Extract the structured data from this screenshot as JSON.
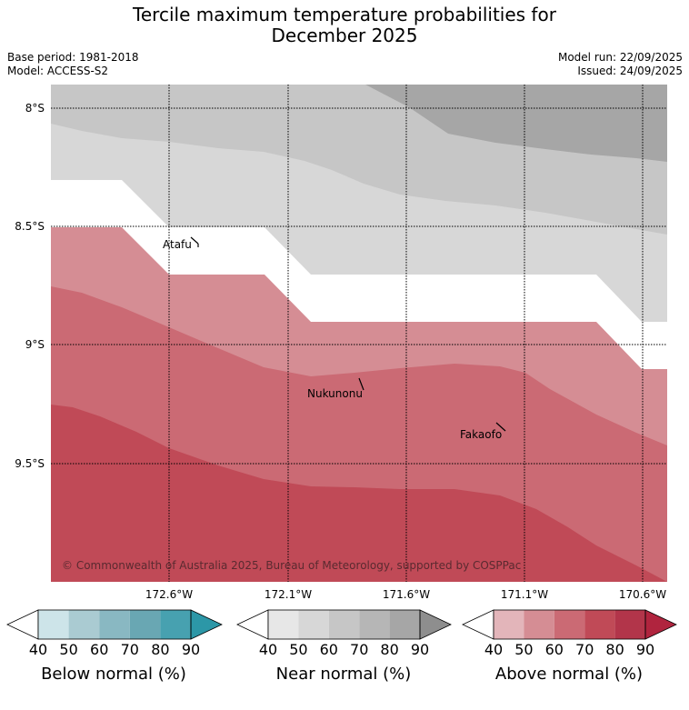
{
  "title_line1": "Tercile maximum temperature probabilities for",
  "title_line2": "December 2025",
  "meta": {
    "base_period": "Base period: 1981-2018",
    "model": "Model: ACCESS-S2",
    "model_run": "Model run: 22/09/2025",
    "issued": "Issued: 24/09/2025"
  },
  "map": {
    "lat_labels": [
      "8°S",
      "8.5°S",
      "9°S",
      "9.5°S"
    ],
    "lon_labels": [
      "172.6°W",
      "172.1°W",
      "171.6°W",
      "171.1°W",
      "170.6°W"
    ],
    "places": {
      "atafu": "Atafu",
      "nukunonu": "Nukunonu",
      "fakaofo": "Fakaofo"
    },
    "copyright": "© Commonwealth of Australia 2025, Bureau of Meteorology, supported by COSPPac"
  },
  "colors": {
    "near_50": "#d7d7d7",
    "near_60": "#c6c6c6",
    "near_80": "#a6a6a6",
    "above_50": "#d58d94",
    "above_60": "#cb6a74",
    "above_70": "#c04a57"
  },
  "legends": {
    "ticks": [
      "40",
      "50",
      "60",
      "70",
      "80",
      "90"
    ],
    "below": {
      "label": "Below normal (%)",
      "colors": [
        "#ffffff",
        "#cde4e9",
        "#aacbd2",
        "#89b8c2",
        "#69a7b3",
        "#47a1b0",
        "#2c97a7"
      ]
    },
    "near": {
      "label": "Near normal (%)",
      "colors": [
        "#ffffff",
        "#e7e7e7",
        "#d7d7d7",
        "#c6c6c6",
        "#b6b6b6",
        "#a6a6a6",
        "#8e8e8e"
      ]
    },
    "above": {
      "label": "Above normal (%)",
      "colors": [
        "#ffffff",
        "#e3b5ba",
        "#d58d94",
        "#cb6a74",
        "#c04a57",
        "#b2354a",
        "#b0243e"
      ]
    }
  }
}
